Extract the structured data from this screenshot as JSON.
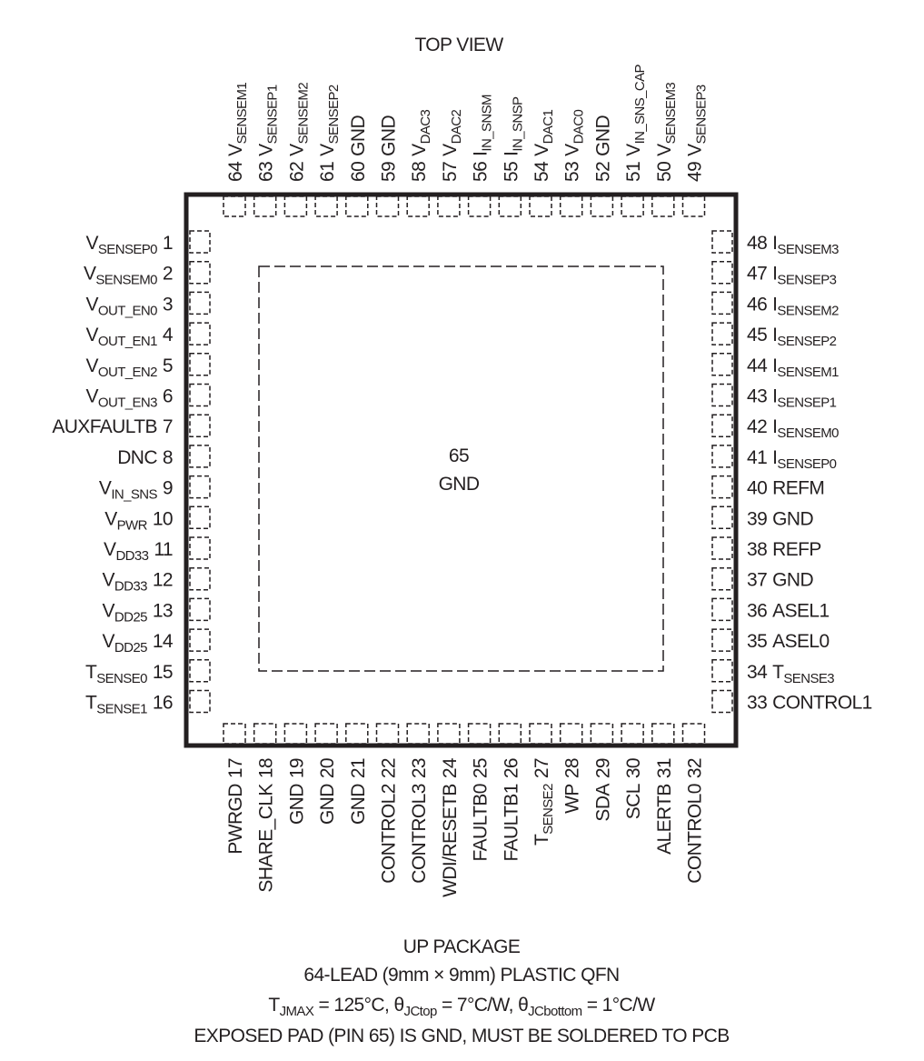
{
  "title": "TOP VIEW",
  "pins": {
    "top": [
      {
        "num": "64",
        "name": "V",
        "sub": "SENSEM1"
      },
      {
        "num": "63",
        "name": "V",
        "sub": "SENSEP1"
      },
      {
        "num": "62",
        "name": "V",
        "sub": "SENSEM2"
      },
      {
        "num": "61",
        "name": "V",
        "sub": "SENSEP2"
      },
      {
        "num": "60",
        "name": "GND"
      },
      {
        "num": "59",
        "name": "GND"
      },
      {
        "num": "58",
        "name": "V",
        "sub": "DAC3"
      },
      {
        "num": "57",
        "name": "V",
        "sub": "DAC2"
      },
      {
        "num": "56",
        "name": "I",
        "sub": "IN_SNSM"
      },
      {
        "num": "55",
        "name": "I",
        "sub": "IN_SNSP"
      },
      {
        "num": "54",
        "name": "V",
        "sub": "DAC1"
      },
      {
        "num": "53",
        "name": "V",
        "sub": "DAC0"
      },
      {
        "num": "52",
        "name": "GND"
      },
      {
        "num": "51",
        "name": "V",
        "sub": "IN_SNS_CAP"
      },
      {
        "num": "50",
        "name": "V",
        "sub": "SENSEM3"
      },
      {
        "num": "49",
        "name": "V",
        "sub": "SENSEP3"
      }
    ],
    "left": [
      {
        "num": "1",
        "name": "V",
        "sub": "SENSEP0"
      },
      {
        "num": "2",
        "name": "V",
        "sub": "SENSEM0"
      },
      {
        "num": "3",
        "name": "V",
        "sub": "OUT_EN0"
      },
      {
        "num": "4",
        "name": "V",
        "sub": "OUT_EN1"
      },
      {
        "num": "5",
        "name": "V",
        "sub": "OUT_EN2"
      },
      {
        "num": "6",
        "name": "V",
        "sub": "OUT_EN3"
      },
      {
        "num": "7",
        "name": "AUXFAULTB"
      },
      {
        "num": "8",
        "name": "DNC"
      },
      {
        "num": "9",
        "name": "V",
        "sub": "IN_SNS"
      },
      {
        "num": "10",
        "name": "V",
        "sub": "PWR"
      },
      {
        "num": "11",
        "name": "V",
        "sub": "DD33"
      },
      {
        "num": "12",
        "name": "V",
        "sub": "DD33"
      },
      {
        "num": "13",
        "name": "V",
        "sub": "DD25"
      },
      {
        "num": "14",
        "name": "V",
        "sub": "DD25"
      },
      {
        "num": "15",
        "name": "T",
        "sub": "SENSE0"
      },
      {
        "num": "16",
        "name": "T",
        "sub": "SENSE1"
      }
    ],
    "right": [
      {
        "num": "48",
        "name": "I",
        "sub": "SENSEM3"
      },
      {
        "num": "47",
        "name": "I",
        "sub": "SENSEP3"
      },
      {
        "num": "46",
        "name": "I",
        "sub": "SENSEM2"
      },
      {
        "num": "45",
        "name": "I",
        "sub": "SENSEP2"
      },
      {
        "num": "44",
        "name": "I",
        "sub": "SENSEM1"
      },
      {
        "num": "43",
        "name": "I",
        "sub": "SENSEP1"
      },
      {
        "num": "42",
        "name": "I",
        "sub": "SENSEM0"
      },
      {
        "num": "41",
        "name": "I",
        "sub": "SENSEP0"
      },
      {
        "num": "40",
        "name": "REFM"
      },
      {
        "num": "39",
        "name": "GND"
      },
      {
        "num": "38",
        "name": "REFP"
      },
      {
        "num": "37",
        "name": "GND"
      },
      {
        "num": "36",
        "name": "ASEL1"
      },
      {
        "num": "35",
        "name": "ASEL0"
      },
      {
        "num": "34",
        "name": "T",
        "sub": "SENSE3"
      },
      {
        "num": "33",
        "name": "CONTROL1"
      }
    ],
    "bottom": [
      {
        "num": "17",
        "name": "PWRGD"
      },
      {
        "num": "18",
        "name": "SHARE_CLK"
      },
      {
        "num": "19",
        "name": "GND"
      },
      {
        "num": "20",
        "name": "GND"
      },
      {
        "num": "21",
        "name": "GND"
      },
      {
        "num": "22",
        "name": "CONTROL2"
      },
      {
        "num": "23",
        "name": "CONTROL3"
      },
      {
        "num": "24",
        "name": "WDI/RESETB"
      },
      {
        "num": "25",
        "name": "FAULTB0"
      },
      {
        "num": "26",
        "name": "FAULTB1"
      },
      {
        "num": "27",
        "name": "T",
        "sub": "SENSE2"
      },
      {
        "num": "28",
        "name": "WP"
      },
      {
        "num": "29",
        "name": "SDA"
      },
      {
        "num": "30",
        "name": "SCL"
      },
      {
        "num": "31",
        "name": "ALERTB"
      },
      {
        "num": "32",
        "name": "CONTROL0"
      }
    ]
  },
  "center": {
    "number": "65",
    "label": "GND"
  },
  "footer": {
    "package": "UP PACKAGE",
    "lead": "64-LEAD (9mm × 9mm) PLASTIC QFN",
    "thermal": [
      {
        "text": "T"
      },
      {
        "sub": "JMAX"
      },
      {
        "text": " = 125°C, θ"
      },
      {
        "sub": "JCtop"
      },
      {
        "text": " = 7°C/W, θ"
      },
      {
        "sub": "JCbottom"
      },
      {
        "text": " = 1°C/W"
      }
    ],
    "note": "EXPOSED PAD (PIN 65) IS GND, MUST BE SOLDERED TO PCB"
  }
}
